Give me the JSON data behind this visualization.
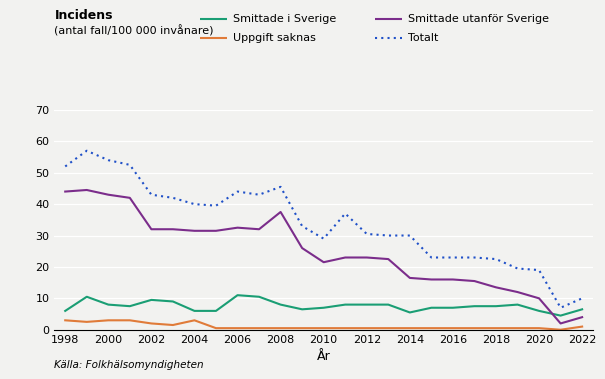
{
  "years": [
    1998,
    1999,
    2000,
    2001,
    2002,
    2003,
    2004,
    2005,
    2006,
    2007,
    2008,
    2009,
    2010,
    2011,
    2012,
    2013,
    2014,
    2015,
    2016,
    2017,
    2018,
    2019,
    2020,
    2021,
    2022
  ],
  "smittade_sverige": [
    6,
    10.5,
    8,
    7.5,
    9.5,
    9,
    6,
    6,
    11,
    10.5,
    8,
    6.5,
    7,
    8,
    8,
    8,
    5.5,
    7,
    7,
    7.5,
    7.5,
    8,
    6,
    4.5,
    6.5
  ],
  "smittade_utanfor": [
    44,
    44.5,
    43,
    42,
    32,
    32,
    31.5,
    31.5,
    32.5,
    32,
    37.5,
    26,
    21.5,
    23,
    23,
    22.5,
    16.5,
    16,
    16,
    15.5,
    13.5,
    12,
    10,
    2,
    4
  ],
  "uppgift_saknas": [
    3,
    2.5,
    3,
    3,
    2,
    1.5,
    3,
    0.5,
    0.5,
    0.5,
    0.5,
    0.5,
    0.5,
    0.5,
    0.5,
    0.5,
    0.5,
    0.5,
    0.5,
    0.5,
    0.5,
    0.5,
    0.5,
    0,
    1
  ],
  "totalt": [
    52,
    57,
    54,
    52.5,
    43,
    42,
    40,
    39.5,
    44,
    43,
    45.5,
    33,
    29,
    37,
    30.5,
    30,
    30,
    23,
    23,
    23,
    22.5,
    19.5,
    19,
    7,
    10
  ],
  "color_sverige": "#1a9e74",
  "color_utanfor": "#7b2d8b",
  "color_uppgift": "#e07b39",
  "color_totalt": "#1f50c8",
  "title_line1": "Incidens",
  "title_line2": "(antal fall/100 000 invånare)",
  "xlabel": "År",
  "ylim": [
    0,
    70
  ],
  "yticks": [
    0,
    10,
    20,
    30,
    40,
    50,
    60,
    70
  ],
  "xticks": [
    1998,
    2000,
    2002,
    2004,
    2006,
    2008,
    2010,
    2012,
    2014,
    2016,
    2018,
    2020,
    2022
  ],
  "legend_sverige": "Smittade i Sverige",
  "legend_utanfor": "Smittade utanför Sverige",
  "legend_uppgift": "Uppgift saknas",
  "legend_totalt": "Totalt",
  "source": "Källa: Folkhälsomyndigheten",
  "background_color": "#f2f2f0"
}
